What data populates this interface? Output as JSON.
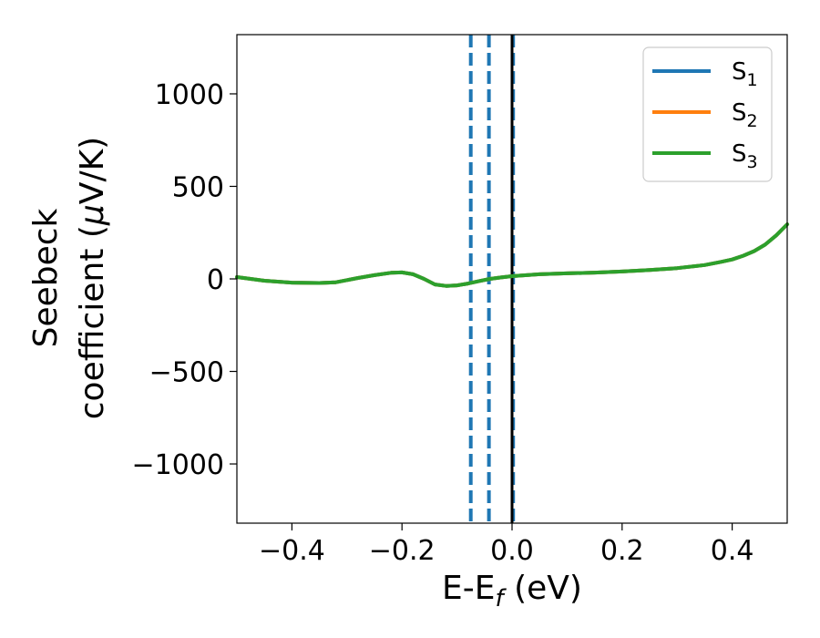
{
  "chart_data": {
    "type": "line",
    "xlabel": {
      "base": "E-E",
      "sub": "f",
      "suffix": " (eV)"
    },
    "ylabel": {
      "line1": "Seebeck",
      "line2": "coefficient  (",
      "mu": "μ",
      "unit": "V/K)"
    },
    "xlim": [
      -0.5,
      0.5
    ],
    "ylim": [
      -1320,
      1320
    ],
    "xticks": [
      -0.4,
      -0.2,
      0.0,
      0.2,
      0.4
    ],
    "xtick_labels": [
      "−0.4",
      "−0.2",
      "0.0",
      "0.2",
      "0.4"
    ],
    "yticks": [
      -1000,
      -500,
      0,
      500,
      1000
    ],
    "ytick_labels": [
      "−1000",
      "−500",
      "0",
      "500",
      "1000"
    ],
    "grid": false,
    "legend_position": "top-right",
    "series": [
      {
        "name": "S1",
        "base": "S",
        "sub": "1",
        "color": "#1f77b4",
        "x": [
          -0.5,
          -0.45,
          -0.4,
          -0.35,
          -0.32,
          -0.28,
          -0.25,
          -0.22,
          -0.2,
          -0.18,
          -0.16,
          -0.14,
          -0.12,
          -0.1,
          -0.08,
          -0.06,
          -0.04,
          -0.02,
          0.0,
          0.05,
          0.1,
          0.15,
          0.2,
          0.25,
          0.3,
          0.35,
          0.38,
          0.4,
          0.42,
          0.44,
          0.46,
          0.48,
          0.5
        ],
        "y": [
          10,
          -10,
          -20,
          -22,
          -18,
          5,
          20,
          33,
          35,
          25,
          0,
          -30,
          -38,
          -35,
          -25,
          -12,
          0,
          8,
          15,
          25,
          30,
          34,
          40,
          48,
          58,
          75,
          92,
          105,
          125,
          150,
          185,
          235,
          295
        ]
      },
      {
        "name": "S2",
        "base": "S",
        "sub": "2",
        "color": "#ff7f0e",
        "x": [
          -0.5,
          -0.45,
          -0.4,
          -0.35,
          -0.32,
          -0.28,
          -0.25,
          -0.22,
          -0.2,
          -0.18,
          -0.16,
          -0.14,
          -0.12,
          -0.1,
          -0.08,
          -0.06,
          -0.04,
          -0.02,
          0.0,
          0.05,
          0.1,
          0.15,
          0.2,
          0.25,
          0.3,
          0.35,
          0.38,
          0.4,
          0.42,
          0.44,
          0.46,
          0.48,
          0.5
        ],
        "y": [
          10,
          -10,
          -20,
          -22,
          -18,
          5,
          20,
          33,
          35,
          25,
          0,
          -30,
          -38,
          -35,
          -25,
          -12,
          0,
          8,
          15,
          25,
          30,
          34,
          40,
          48,
          58,
          75,
          92,
          105,
          125,
          150,
          185,
          235,
          295
        ]
      },
      {
        "name": "S3",
        "base": "S",
        "sub": "3",
        "color": "#2ca02c",
        "x": [
          -0.5,
          -0.45,
          -0.4,
          -0.35,
          -0.32,
          -0.28,
          -0.25,
          -0.22,
          -0.2,
          -0.18,
          -0.16,
          -0.14,
          -0.12,
          -0.1,
          -0.08,
          -0.06,
          -0.04,
          -0.02,
          0.0,
          0.05,
          0.1,
          0.15,
          0.2,
          0.25,
          0.3,
          0.35,
          0.38,
          0.4,
          0.42,
          0.44,
          0.46,
          0.48,
          0.5
        ],
        "y": [
          10,
          -10,
          -20,
          -22,
          -18,
          5,
          20,
          33,
          35,
          25,
          0,
          -30,
          -38,
          -35,
          -25,
          -12,
          0,
          8,
          15,
          25,
          30,
          34,
          40,
          48,
          58,
          75,
          92,
          105,
          125,
          150,
          185,
          235,
          295
        ]
      }
    ],
    "vlines": [
      {
        "x": -0.075,
        "color": "#1f77b4",
        "style": "dashed"
      },
      {
        "x": -0.042,
        "color": "#1f77b4",
        "style": "dashed"
      },
      {
        "x": 0.002,
        "color": "#1f77b4",
        "style": "dashed"
      },
      {
        "x": 0.0,
        "color": "#000000",
        "style": "solid"
      }
    ]
  }
}
